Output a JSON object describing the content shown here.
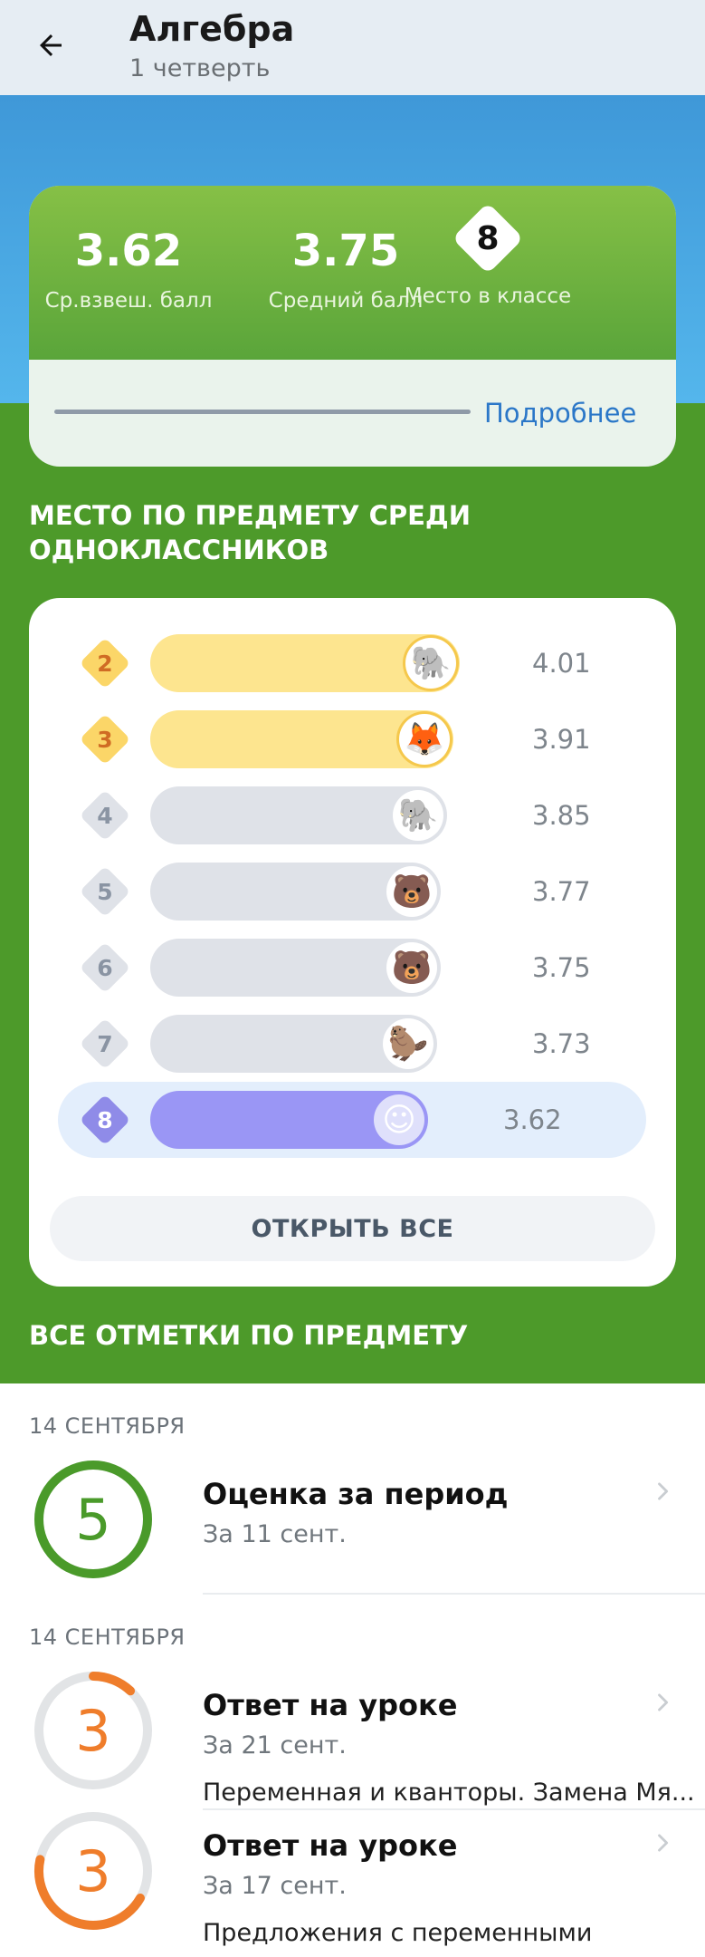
{
  "header": {
    "title": "Алгебра",
    "subtitle": "1 четверть"
  },
  "summary": {
    "weighted_avg": "3.62",
    "weighted_avg_label": "Ср.взвеш. балл",
    "avg": "3.75",
    "avg_label": "Средний балл",
    "place": "8",
    "place_label": "Место в классе",
    "more_label": "Подробнее"
  },
  "ranking": {
    "title": "МЕСТО ПО ПРЕДМЕТУ СРЕДИ ОДНОКЛАССНИКОВ",
    "rows": [
      {
        "place": "2",
        "score": "4.01",
        "avatar": "elephant-cap",
        "avatar_glyph": "🐘",
        "level": 0.99
      },
      {
        "place": "3",
        "score": "3.91",
        "avatar": "fox-cap",
        "avatar_glyph": "🦊",
        "level": 0.97
      },
      {
        "place": "4",
        "score": "3.85",
        "avatar": "elephant",
        "avatar_glyph": "🐘",
        "level": 0.95
      },
      {
        "place": "5",
        "score": "3.77",
        "avatar": "bear-bowtie",
        "avatar_glyph": "🐻",
        "level": 0.93
      },
      {
        "place": "6",
        "score": "3.75",
        "avatar": "bear",
        "avatar_glyph": "🐻",
        "level": 0.93
      },
      {
        "place": "7",
        "score": "3.73",
        "avatar": "beaver",
        "avatar_glyph": "🦫",
        "level": 0.92
      },
      {
        "place": "8",
        "score": "3.62",
        "avatar": "smiley",
        "avatar_glyph": "☺",
        "level": 0.89,
        "is_me": true
      }
    ],
    "open_all_label": "ОТКРЫТЬ ВСЕ"
  },
  "marks": {
    "title": "ВСЕ ОТМЕТКИ ПО ПРЕДМЕТУ",
    "items": [
      {
        "date": "14 СЕНТЯБРЯ",
        "mark": "5",
        "title": "Оценка за период",
        "sub": "За 11 сент.",
        "desc": "",
        "color": "#4a9a2a",
        "fill": 1.0
      },
      {
        "date": "14 СЕНТЯБРЯ",
        "mark": "3",
        "title": "Ответ на уроке",
        "sub": "За 21 сент.",
        "desc": "Переменная и кванторы. Замена  Мя...",
        "color": "#ef7d2b",
        "fill": 0.12
      },
      {
        "date": "",
        "mark": "3",
        "title": "Ответ на уроке",
        "sub": "За 17 сент.",
        "desc": "Предложения с переменными",
        "color": "#ef7d2b",
        "fill": 0.45
      }
    ]
  },
  "colors": {
    "gold": "#fde58f",
    "gold_text": "#d06c24",
    "grey_bar": "#dfe2e8",
    "me_bar": "#9a96f5",
    "me_diamond": "#8f8be8"
  }
}
